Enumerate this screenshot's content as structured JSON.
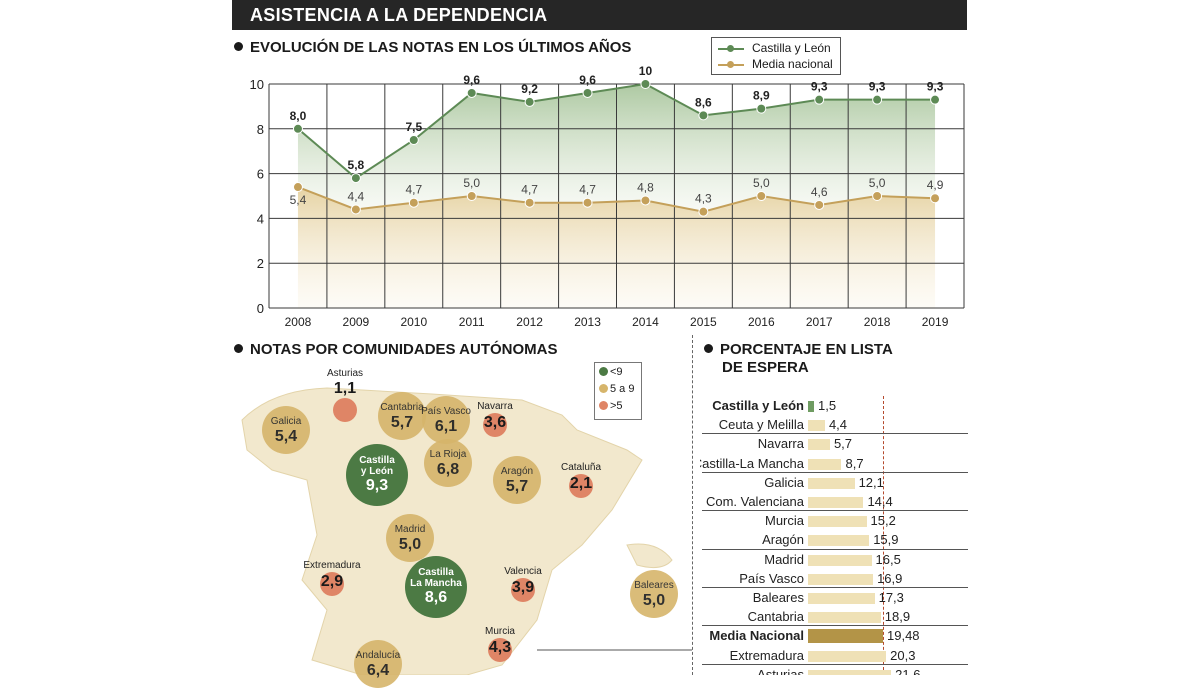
{
  "header": {
    "title": "ASISTENCIA A LA DEPENDENCIA"
  },
  "sections": {
    "evolution_title": "EVOLUCIÓN DE LAS NOTAS EN LOS ÚLTIMOS AÑOS",
    "regions_title": "NOTAS POR COMUNIDADES AUTÓNOMAS",
    "waiting_title_line1": "PORCENTAJE EN LISTA",
    "waiting_title_line2": "DE ESPERA"
  },
  "colors": {
    "cyl_line": "#5d8a55",
    "cyl_fill": "#a9c69d",
    "nat_line": "#c4a05a",
    "nat_fill": "#e6d3a4",
    "green_bubble": "#4c7a44",
    "tan_bubble": "#d6b56b",
    "red_bubble": "#df8566",
    "bar": "#efe1b6",
    "bar_highlight_green": "#6f9c62",
    "bar_highlight_gold": "#b39447"
  },
  "chart_data": [
    {
      "type": "line",
      "x": [
        "2008",
        "2009",
        "2010",
        "2011",
        "2012",
        "2013",
        "2014",
        "2015",
        "2016",
        "2017",
        "2018",
        "2019"
      ],
      "ylim": [
        0,
        10
      ],
      "yticks": [
        "0",
        "2",
        "4",
        "6",
        "8",
        "10"
      ],
      "grid": true,
      "legend_position": "top-right",
      "series": [
        {
          "name": "Castilla y León",
          "values": [
            8.0,
            5.8,
            7.5,
            9.6,
            9.2,
            9.6,
            10,
            8.6,
            8.9,
            9.3,
            9.3,
            9.3
          ],
          "labels": [
            "8,0",
            "5,8",
            "7,5",
            "9,6",
            "9,2",
            "9,6",
            "10",
            "8,6",
            "8,9",
            "9,3",
            "9,3",
            "9,3"
          ]
        },
        {
          "name": "Media nacional",
          "values": [
            5.4,
            4.4,
            4.7,
            5.0,
            4.7,
            4.7,
            4.8,
            4.3,
            5.0,
            4.6,
            5.0,
            4.9
          ],
          "labels": [
            "5,4",
            "4,4",
            "4,7",
            "5,0",
            "4,7",
            "4,7",
            "4,8",
            "4,3",
            "5,0",
            "4,6",
            "5,0",
            "4,9"
          ]
        }
      ]
    },
    {
      "type": "bubble-map",
      "legend": [
        {
          "label": "<9",
          "color": "#4c7a44"
        },
        {
          "label": "5 a 9",
          "color": "#d6b56b"
        },
        {
          "label": ">5",
          "color": "#df8566"
        }
      ],
      "regions": [
        {
          "name": "Asturias",
          "value": "1,1",
          "level": "red",
          "size": "s"
        },
        {
          "name": "Galicia",
          "value": "5,4",
          "level": "tan",
          "size": "m"
        },
        {
          "name": "Cantabria",
          "value": "5,7",
          "level": "tan",
          "size": "m"
        },
        {
          "name": "País Vasco",
          "value": "6,1",
          "level": "tan",
          "size": "m"
        },
        {
          "name": "Navarra",
          "value": "3,6",
          "level": "red",
          "size": "s"
        },
        {
          "name": "Castilla\ny León",
          "value": "9,3",
          "level": "green",
          "size": "l"
        },
        {
          "name": "La Rioja",
          "value": "6,8",
          "level": "tan",
          "size": "m"
        },
        {
          "name": "Aragón",
          "value": "5,7",
          "level": "tan",
          "size": "m"
        },
        {
          "name": "Cataluña",
          "value": "2,1",
          "level": "red",
          "size": "s"
        },
        {
          "name": "Madrid",
          "value": "5,0",
          "level": "tan",
          "size": "m"
        },
        {
          "name": "Extremadura",
          "value": "2,9",
          "level": "red",
          "size": "s"
        },
        {
          "name": "Castilla\nLa Mancha",
          "value": "8,6",
          "level": "green",
          "size": "l"
        },
        {
          "name": "Valencia",
          "value": "3,9",
          "level": "red",
          "size": "s"
        },
        {
          "name": "Baleares",
          "value": "5,0",
          "level": "tan",
          "size": "m"
        },
        {
          "name": "Murcia",
          "value": "4,3",
          "level": "red",
          "size": "s"
        },
        {
          "name": "Andalucía",
          "value": "6,4",
          "level": "tan",
          "size": "m"
        }
      ]
    },
    {
      "type": "bar",
      "categories": [
        "Castilla y León",
        "Ceuta y Melilla",
        "Navarra",
        "Castilla-La Mancha",
        "Galicia",
        "Com. Valenciana",
        "Murcia",
        "Aragón",
        "Madrid",
        "País Vasco",
        "Baleares",
        "Cantabria",
        "Media Nacional",
        "Extremadura",
        "Asturias"
      ],
      "values": [
        1.5,
        4.4,
        5.7,
        8.7,
        12.1,
        14.4,
        15.2,
        15.9,
        16.5,
        16.9,
        17.3,
        18.9,
        19.48,
        20.3,
        21.6
      ],
      "labels": [
        "1,5",
        "4,4",
        "5,7",
        "8,7",
        "12,1",
        "14,4",
        "15,2",
        "15,9",
        "16,5",
        "16,9",
        "17,3",
        "18,9",
        "19,48",
        "20,3",
        "21,6"
      ],
      "highlight": {
        "Castilla y León": "green",
        "Media Nacional": "gold"
      }
    }
  ]
}
